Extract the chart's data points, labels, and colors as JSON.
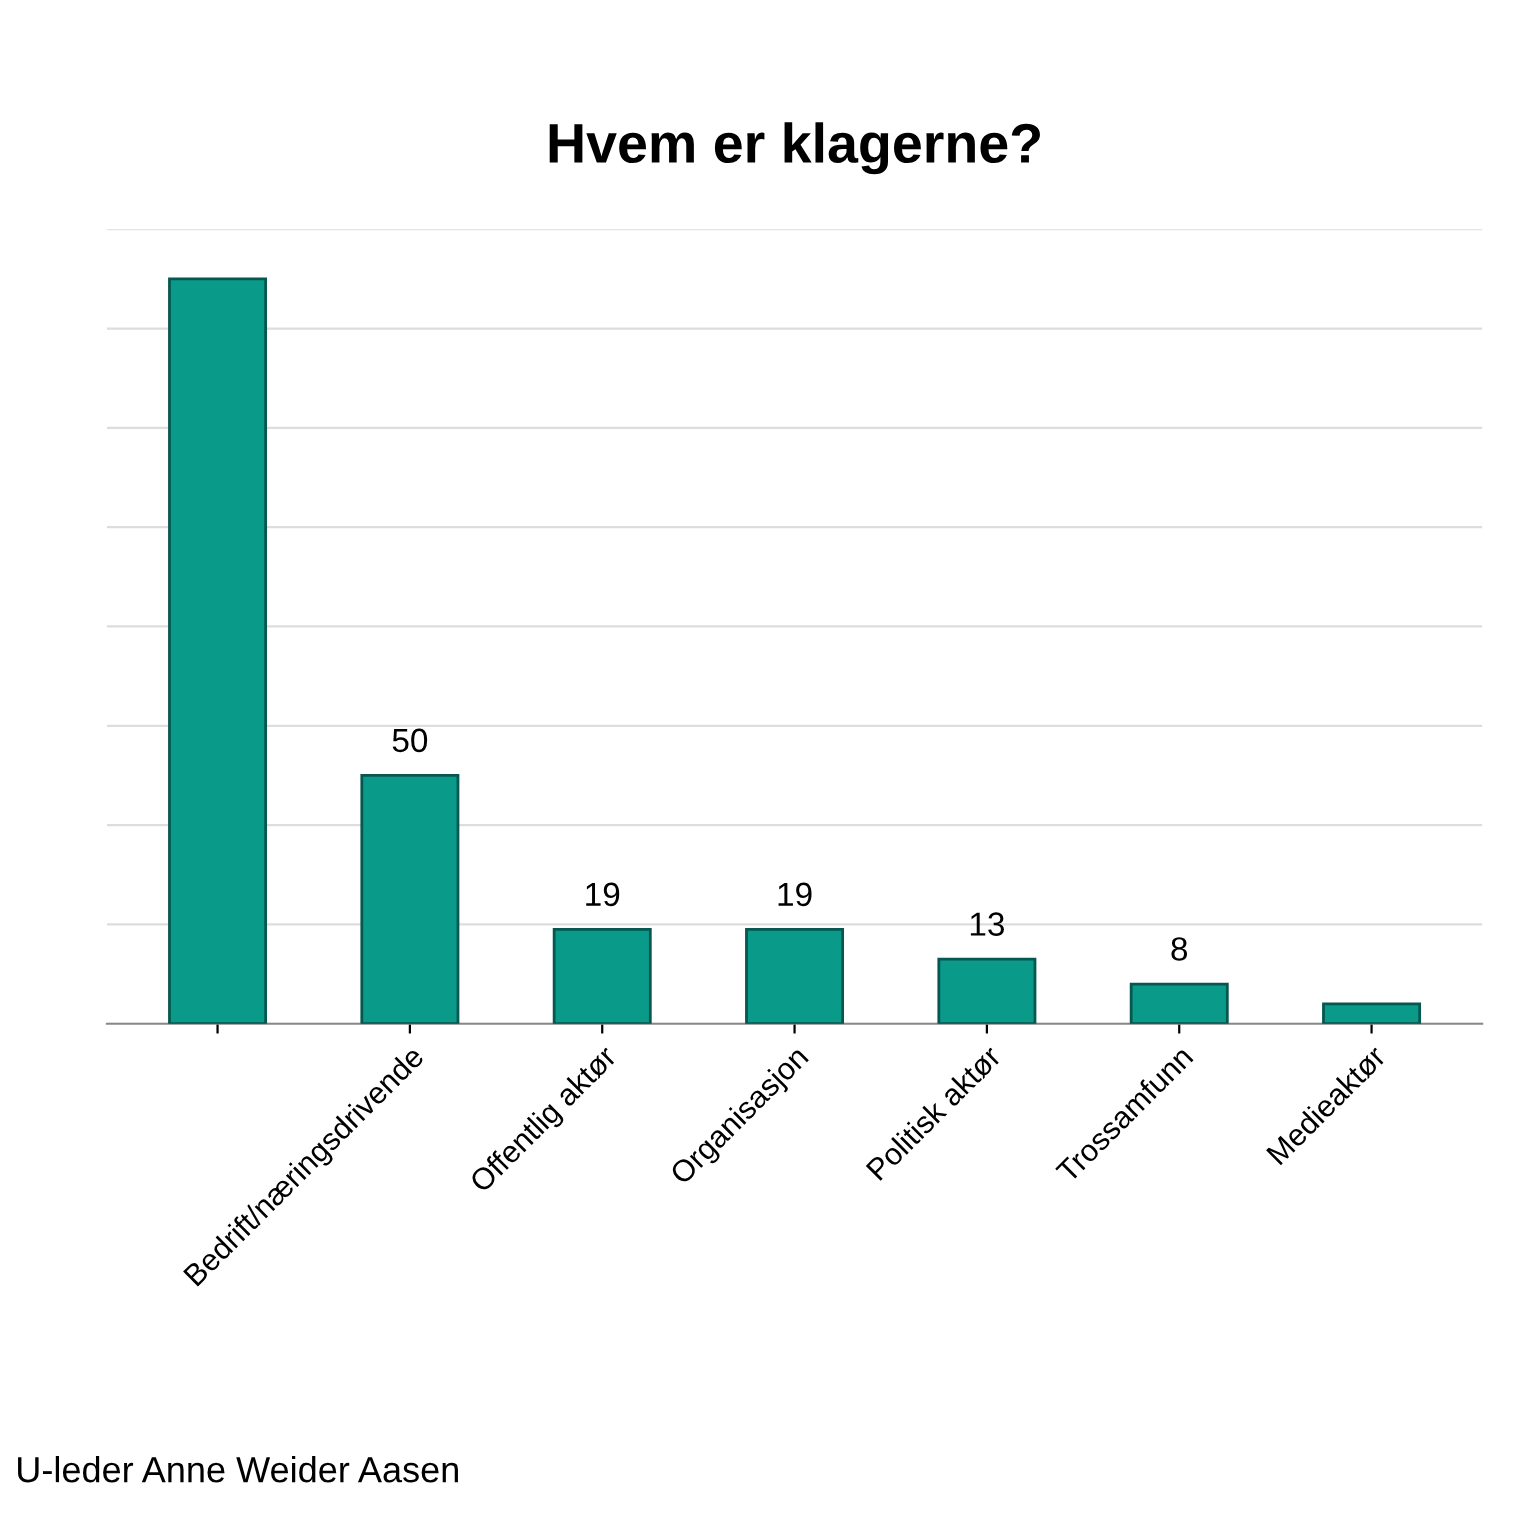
{
  "chart_data": {
    "type": "bar",
    "title": "Hvem er klagerne?",
    "categories": [
      null,
      "Bedrift/næringsdrivende",
      "Offentlig aktør",
      "Organisasjon",
      "Politisk aktør",
      "Trossamfunn",
      "Medieaktør"
    ],
    "values": [
      150,
      50,
      19,
      19,
      13,
      8,
      4
    ],
    "value_labels": [
      null,
      "50",
      "19",
      "19",
      "13",
      "8",
      null
    ],
    "color": "#0a9a8a",
    "ylim": [
      0,
      160
    ],
    "yticks": [
      {
        "value": 0,
        "label": null
      },
      {
        "value": 20,
        "label": null
      },
      {
        "value": 40,
        "label": null
      },
      {
        "value": 60,
        "label": null
      },
      {
        "value": 80,
        "label": null
      },
      {
        "value": 100,
        "label": null
      },
      {
        "value": 120,
        "label": null
      },
      {
        "value": 140,
        "label": null
      },
      {
        "value": 160,
        "label": null
      }
    ],
    "tick_labels": "x",
    "grid": "y",
    "legend": false,
    "annotations": [
      "U-leder Anne Weider Aasen"
    ]
  }
}
